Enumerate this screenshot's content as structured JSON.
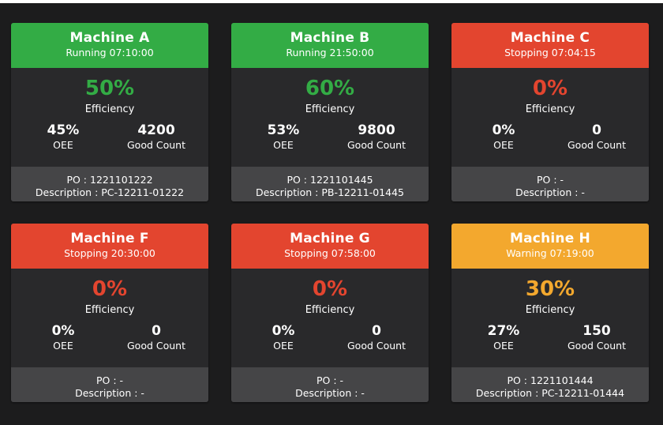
{
  "colors": {
    "running": "#33ac45",
    "stopping": "#e3452f",
    "warning": "#f3a82e",
    "background": "#1c1c1d",
    "card": "#29292b",
    "footer": "#454547"
  },
  "labels": {
    "efficiency": "Efficiency",
    "oee": "OEE",
    "good_count": "Good Count"
  },
  "machines": [
    {
      "name": "Machine A",
      "status": "Running 07:10:00",
      "state": "running",
      "efficiency": "50%",
      "oee": "45%",
      "good_count": "4200",
      "po": "PO : 1221101222",
      "description": "Description : PC-12211-01222"
    },
    {
      "name": "Machine B",
      "status": "Running 21:50:00",
      "state": "running",
      "efficiency": "60%",
      "oee": "53%",
      "good_count": "9800",
      "po": "PO : 1221101445",
      "description": "Description : PB-12211-01445"
    },
    {
      "name": "Machine C",
      "status": "Stopping 07:04:15",
      "state": "stopping",
      "efficiency": "0%",
      "oee": "0%",
      "good_count": "0",
      "po": "PO : -",
      "description": "Description : -"
    },
    {
      "name": "Machine F",
      "status": "Stopping 20:30:00",
      "state": "stopping",
      "efficiency": "0%",
      "oee": "0%",
      "good_count": "0",
      "po": "PO : -",
      "description": "Description : -"
    },
    {
      "name": "Machine G",
      "status": "Stopping 07:58:00",
      "state": "stopping",
      "efficiency": "0%",
      "oee": "0%",
      "good_count": "0",
      "po": "PO : -",
      "description": "Description : -"
    },
    {
      "name": "Machine H",
      "status": "Warning 07:19:00",
      "state": "warning",
      "efficiency": "30%",
      "oee": "27%",
      "good_count": "150",
      "po": "PO : 1221101444",
      "description": "Description : PC-12211-01444"
    }
  ]
}
